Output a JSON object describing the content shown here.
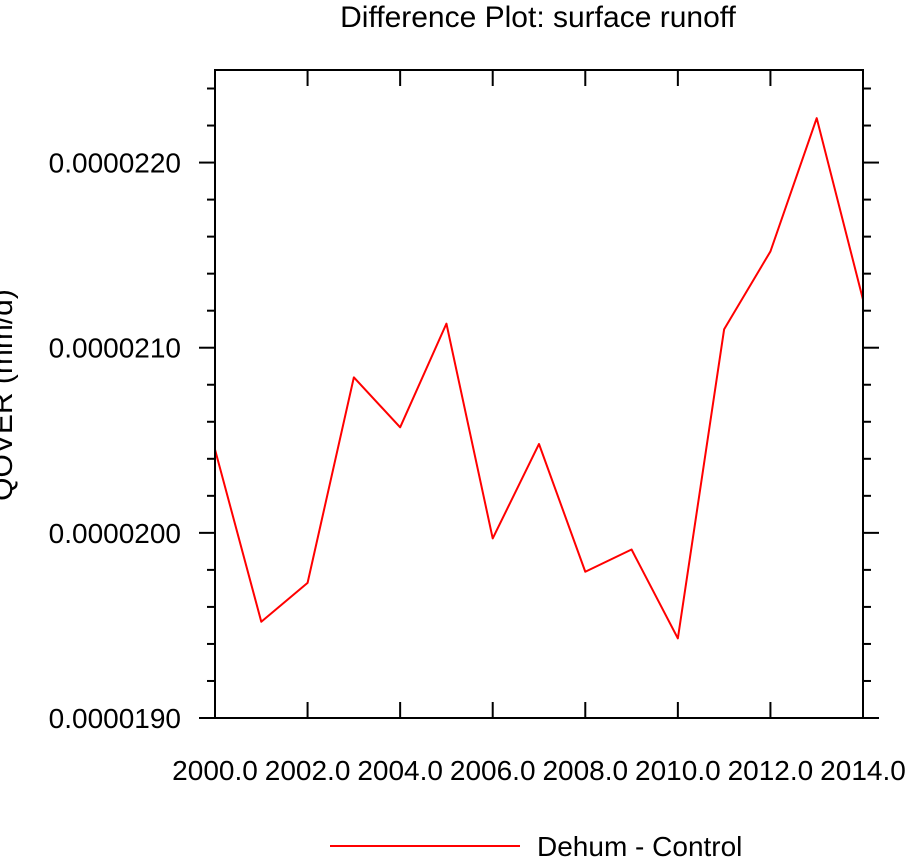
{
  "chart_data": {
    "type": "line",
    "title": "Difference Plot: surface runoff",
    "xlabel": "",
    "ylabel": "QOVER  (mm/d)",
    "xlim": [
      2000,
      2014
    ],
    "ylim": [
      1.9e-05,
      2.25e-05
    ],
    "x_ticks": [
      2000,
      2002,
      2004,
      2006,
      2008,
      2010,
      2012,
      2014
    ],
    "x_tick_labels": [
      "2000.0",
      "2002.0",
      "2004.0",
      "2006.0",
      "2008.0",
      "2010.0",
      "2012.0",
      "2014.0"
    ],
    "y_ticks": [
      1.9e-05,
      2e-05,
      2.1e-05,
      2.2e-05
    ],
    "y_tick_labels": [
      "0.0000190",
      "0.0000200",
      "0.0000210",
      "0.0000220"
    ],
    "legend_position": "bottom-center",
    "grid": false,
    "series": [
      {
        "name": "Dehum - Control",
        "color": "#ff0000",
        "x": [
          2000,
          2001,
          2002,
          2003,
          2004,
          2005,
          2006,
          2007,
          2008,
          2009,
          2010,
          2011,
          2012,
          2013,
          2014
        ],
        "values": [
          2.045e-05,
          1.952e-05,
          1.973e-05,
          2.084e-05,
          2.057e-05,
          2.113e-05,
          1.997e-05,
          2.048e-05,
          1.979e-05,
          1.991e-05,
          1.943e-05,
          2.11e-05,
          2.152e-05,
          2.224e-05,
          2.126e-05
        ]
      }
    ]
  }
}
